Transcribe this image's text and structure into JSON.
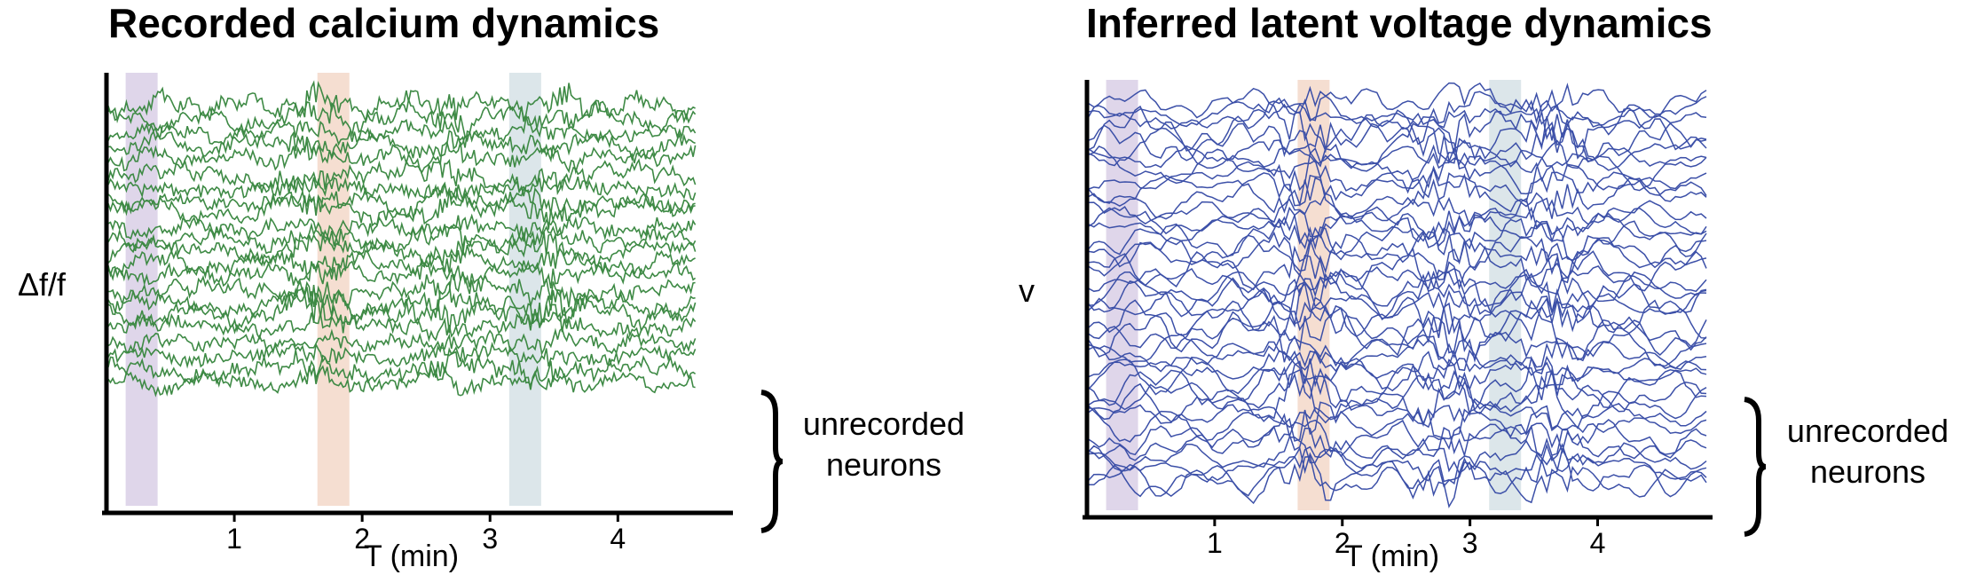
{
  "chart_data": [
    {
      "type": "line",
      "title": "Recorded calcium dynamics",
      "ylabel": "Δf/f",
      "xlabel": "T (min)",
      "xticks": [
        "1",
        "2",
        "3",
        "4"
      ],
      "xlim": [
        0.0,
        4.9
      ],
      "trace_count": 22,
      "line_color": "#3e8a45",
      "annotation": [
        "unrecorded",
        "neurons"
      ],
      "highlight_windows": [
        {
          "x": [
            0.15,
            0.4
          ],
          "color": "#d9cfe6"
        },
        {
          "x": [
            1.65,
            1.9
          ],
          "color": "#f3d8c9"
        },
        {
          "x": [
            3.15,
            3.4
          ],
          "color": "#d6e2e6"
        }
      ]
    },
    {
      "type": "line",
      "title": "Inferred latent voltage dynamics",
      "ylabel": "v",
      "xlabel": "T (min)",
      "xticks": [
        "1",
        "2",
        "3",
        "4"
      ],
      "xlim": [
        0.0,
        4.9
      ],
      "trace_count": 40,
      "line_color": "#3c50a8",
      "annotation": [
        "unrecorded",
        "neurons"
      ],
      "highlight_windows": [
        {
          "x": [
            0.15,
            0.4
          ],
          "color": "#d9cfe6"
        },
        {
          "x": [
            1.65,
            1.9
          ],
          "color": "#f3d8c9"
        },
        {
          "x": [
            3.15,
            3.4
          ],
          "color": "#d6e2e6"
        }
      ]
    }
  ]
}
